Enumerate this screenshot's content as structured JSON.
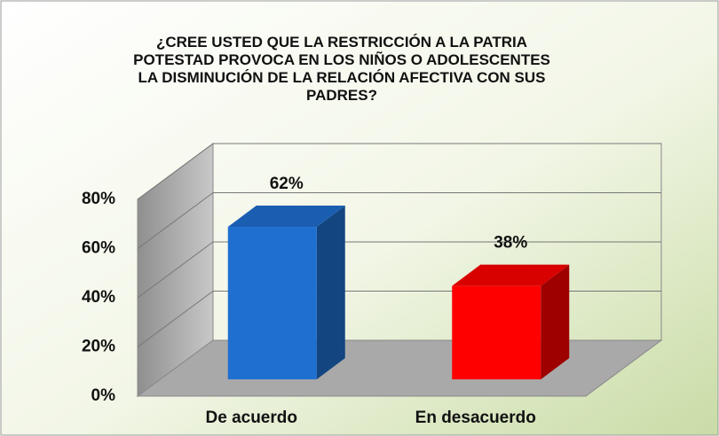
{
  "chart_data": {
    "type": "bar3d",
    "title": "¿CREE USTED QUE LA RESTRICCIÓN  A LA PATRIA POTESTAD PROVOCA EN LOS NIÑOS O ADOLESCENTES LA DISMINUCIÓN DE LA RELACIÓN AFECTIVA CON SUS PADRES?",
    "categories": [
      "De acuerdo",
      "En desacuerdo"
    ],
    "values": [
      62,
      38
    ],
    "value_labels": [
      "62%",
      "38%"
    ],
    "colors": [
      "#1f6fd0",
      "#ff0000"
    ],
    "ylim": [
      0,
      80
    ],
    "yticks": [
      {
        "value": 0,
        "label": "0%"
      },
      {
        "value": 20,
        "label": "20%"
      },
      {
        "value": 40,
        "label": "40%"
      },
      {
        "value": 60,
        "label": "60%"
      },
      {
        "value": 80,
        "label": "80%"
      }
    ],
    "grid": true
  }
}
